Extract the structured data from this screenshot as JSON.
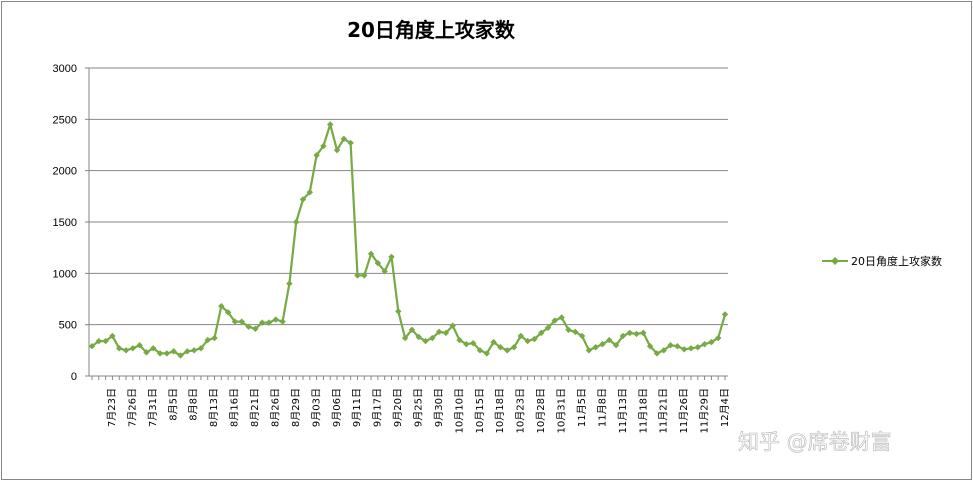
{
  "watermark": "知乎 @席卷财富",
  "chart_data": {
    "type": "line",
    "title": "20日角度上攻家数",
    "xlabel": "",
    "ylabel": "",
    "ylim": [
      0,
      3000
    ],
    "yticks": [
      0,
      500,
      1000,
      1500,
      2000,
      2500,
      3000
    ],
    "grid": true,
    "legend_position": "right",
    "color": "#77a944",
    "x_tick_labels": [
      "7月23日",
      "7月26日",
      "7月31日",
      "8月5日",
      "8月8日",
      "8月13日",
      "8月16日",
      "8月21日",
      "8月26日",
      "8月29日",
      "9月03日",
      "9月06日",
      "9月11日",
      "9月17日",
      "9月20日",
      "9月25日",
      "9月30日",
      "10月10日",
      "10月15日",
      "10月18日",
      "10月23日",
      "10月28日",
      "10月31日",
      "11月5日",
      "11月8日",
      "11月13日",
      "11月18日",
      "11月21日",
      "11月26日",
      "11月29日",
      "12月4日"
    ],
    "series": [
      {
        "name": "20日角度上攻家数",
        "values": [
          290,
          340,
          340,
          390,
          270,
          250,
          270,
          300,
          230,
          270,
          220,
          220,
          240,
          200,
          240,
          250,
          270,
          350,
          370,
          680,
          620,
          530,
          530,
          480,
          460,
          520,
          520,
          550,
          530,
          900,
          1500,
          1720,
          1790,
          2150,
          2240,
          2450,
          2200,
          2310,
          2270,
          980,
          980,
          1190,
          1100,
          1020,
          1160,
          630,
          370,
          450,
          380,
          340,
          370,
          430,
          420,
          490,
          350,
          310,
          320,
          250,
          220,
          330,
          280,
          250,
          280,
          390,
          340,
          360,
          420,
          470,
          540,
          570,
          450,
          430,
          390,
          250,
          280,
          310,
          350,
          300,
          390,
          420,
          410,
          420,
          290,
          220,
          250,
          300,
          290,
          260,
          270,
          280,
          310,
          330,
          370,
          600
        ]
      }
    ]
  }
}
